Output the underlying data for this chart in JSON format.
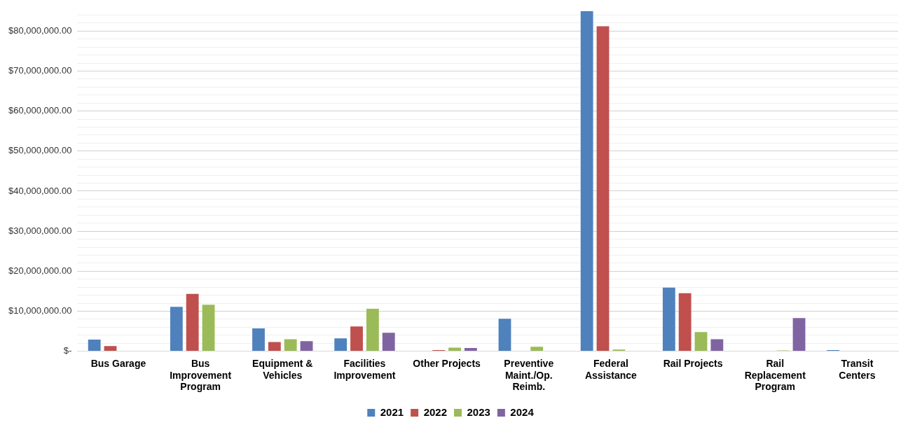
{
  "chart_data": {
    "type": "bar",
    "categories": [
      "Bus Garage",
      "Bus Improvement Program",
      "Equipment & Vehicles",
      "Facilities Improvement",
      "Other Projects",
      "Preventive Maint./Op. Reimb.",
      "Federal Assistance",
      "Rail Projects",
      "Rail Replacement Program",
      "Transit Centers"
    ],
    "series": [
      {
        "name": "2021",
        "color": "#4f81bd",
        "values": [
          2900000,
          11100000,
          5700000,
          3200000,
          null,
          8100000,
          85000000,
          15900000,
          null,
          300000
        ]
      },
      {
        "name": "2022",
        "color": "#c0504d",
        "values": [
          1300000,
          14300000,
          2300000,
          6200000,
          300000,
          null,
          81200000,
          14500000,
          null,
          null
        ]
      },
      {
        "name": "2023",
        "color": "#9bbb59",
        "values": [
          null,
          11600000,
          3000000,
          10600000,
          900000,
          1100000,
          400000,
          4800000,
          200000,
          null
        ]
      },
      {
        "name": "2024",
        "color": "#8064a2",
        "values": [
          null,
          null,
          2500000,
          4600000,
          800000,
          null,
          null,
          3000000,
          8300000,
          null
        ]
      }
    ],
    "ylim": [
      0,
      85000000
    ],
    "yticks": [
      {
        "value": 0,
        "label": "$-"
      },
      {
        "value": 2000000,
        "label": null
      },
      {
        "value": 4000000,
        "label": null
      },
      {
        "value": 6000000,
        "label": null
      },
      {
        "value": 8000000,
        "label": null
      },
      {
        "value": 10000000,
        "label": "$10,000,000.00"
      },
      {
        "value": 12000000,
        "label": null
      },
      {
        "value": 14000000,
        "label": null
      },
      {
        "value": 16000000,
        "label": null
      },
      {
        "value": 18000000,
        "label": null
      },
      {
        "value": 20000000,
        "label": "$20,000,000.00"
      },
      {
        "value": 22000000,
        "label": null
      },
      {
        "value": 24000000,
        "label": null
      },
      {
        "value": 26000000,
        "label": null
      },
      {
        "value": 28000000,
        "label": null
      },
      {
        "value": 30000000,
        "label": "$30,000,000.00"
      },
      {
        "value": 32000000,
        "label": null
      },
      {
        "value": 34000000,
        "label": null
      },
      {
        "value": 36000000,
        "label": null
      },
      {
        "value": 38000000,
        "label": null
      },
      {
        "value": 40000000,
        "label": "$40,000,000.00"
      },
      {
        "value": 42000000,
        "label": null
      },
      {
        "value": 44000000,
        "label": null
      },
      {
        "value": 46000000,
        "label": null
      },
      {
        "value": 48000000,
        "label": null
      },
      {
        "value": 50000000,
        "label": "$50,000,000.00"
      },
      {
        "value": 52000000,
        "label": null
      },
      {
        "value": 54000000,
        "label": null
      },
      {
        "value": 56000000,
        "label": null
      },
      {
        "value": 58000000,
        "label": null
      },
      {
        "value": 60000000,
        "label": "$60,000,000.00"
      },
      {
        "value": 62000000,
        "label": null
      },
      {
        "value": 64000000,
        "label": null
      },
      {
        "value": 66000000,
        "label": null
      },
      {
        "value": 68000000,
        "label": null
      },
      {
        "value": 70000000,
        "label": "$70,000,000.00"
      },
      {
        "value": 72000000,
        "label": null
      },
      {
        "value": 74000000,
        "label": null
      },
      {
        "value": 76000000,
        "label": null
      },
      {
        "value": 78000000,
        "label": null
      },
      {
        "value": 80000000,
        "label": "$80,000,000.00"
      },
      {
        "value": 82000000,
        "label": null
      },
      {
        "value": 84000000,
        "label": null
      }
    ],
    "grid": "y",
    "legend": "bottom"
  }
}
